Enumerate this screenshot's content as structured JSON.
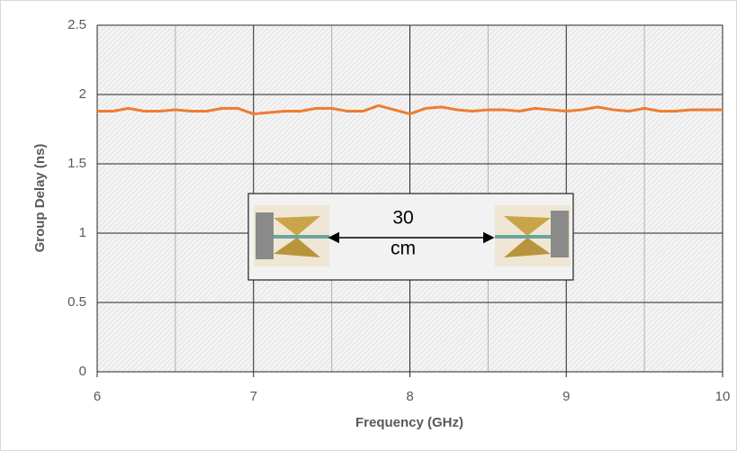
{
  "chart_data": {
    "type": "line",
    "x": [
      6.0,
      6.1,
      6.2,
      6.3,
      6.4,
      6.5,
      6.6,
      6.7,
      6.8,
      6.9,
      7.0,
      7.1,
      7.2,
      7.3,
      7.4,
      7.5,
      7.6,
      7.7,
      7.8,
      7.9,
      8.0,
      8.1,
      8.2,
      8.3,
      8.4,
      8.5,
      8.6,
      8.7,
      8.8,
      8.9,
      9.0,
      9.1,
      9.2,
      9.3,
      9.4,
      9.5,
      9.6,
      9.7,
      9.8,
      9.9,
      10.0
    ],
    "series": [
      {
        "color": "#ed7d31",
        "values": [
          1.88,
          1.88,
          1.9,
          1.88,
          1.88,
          1.89,
          1.88,
          1.88,
          1.9,
          1.9,
          1.86,
          1.87,
          1.88,
          1.88,
          1.9,
          1.9,
          1.88,
          1.88,
          1.92,
          1.89,
          1.86,
          1.9,
          1.91,
          1.89,
          1.88,
          1.89,
          1.89,
          1.88,
          1.9,
          1.89,
          1.88,
          1.89,
          1.91,
          1.89,
          1.88,
          1.9,
          1.88,
          1.88,
          1.89,
          1.89,
          1.89
        ]
      }
    ],
    "xlabel": "Frequency (GHz)",
    "ylabel": "Group Delay (ns)",
    "xlim": [
      6,
      10
    ],
    "xticks": [
      6,
      7,
      8,
      9,
      10
    ],
    "x_minor_gridlines": [
      6.5,
      7.5,
      8.5,
      9.5
    ],
    "ylim": [
      0,
      2.5
    ],
    "yticks": [
      0,
      0.5,
      1,
      1.5,
      2,
      2.5
    ],
    "grid": true,
    "annotation": [
      "30",
      "cm"
    ]
  }
}
